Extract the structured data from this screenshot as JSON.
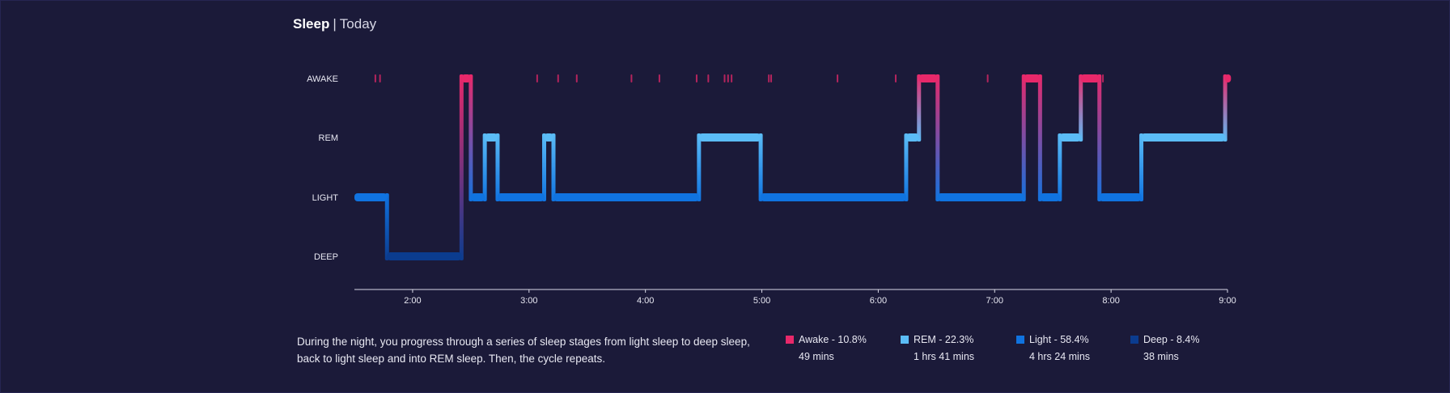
{
  "header": {
    "title": "Sleep",
    "separator": "|",
    "subtitle": "Today"
  },
  "colors": {
    "background": "#1b1a39",
    "awake": "#e8286a",
    "rem": "#5bbcf6",
    "light": "#1073e0",
    "deep": "#0b3c8f"
  },
  "description": "During the night, you progress through a series of sleep stages from light sleep to deep sleep, back to light sleep and into REM sleep. Then, the cycle repeats.",
  "legend": [
    {
      "label": "Awake - 10.8%",
      "duration": "49 mins",
      "color": "#e8286a"
    },
    {
      "label": "REM - 22.3%",
      "duration": "1 hrs 41 mins",
      "color": "#5bbcf6"
    },
    {
      "label": "Light - 58.4%",
      "duration": "4 hrs 24 mins",
      "color": "#1073e0"
    },
    {
      "label": "Deep - 8.4%",
      "duration": "38 mins",
      "color": "#0b3c8f"
    }
  ],
  "chart_data": {
    "type": "hypnogram",
    "stages": [
      "AWAKE",
      "REM",
      "LIGHT",
      "DEEP"
    ],
    "x_unit": "hours (clock time)",
    "xlim": [
      1.5,
      9.0
    ],
    "x_ticks": [
      {
        "value": 2,
        "label": "2:00"
      },
      {
        "value": 3,
        "label": "3:00"
      },
      {
        "value": 4,
        "label": "4:00"
      },
      {
        "value": 5,
        "label": "5:00"
      },
      {
        "value": 6,
        "label": "6:00"
      },
      {
        "value": 7,
        "label": "7:00"
      },
      {
        "value": 8,
        "label": "8:00"
      },
      {
        "value": 9,
        "label": "9:00"
      }
    ],
    "segments": [
      {
        "stage": "LIGHT",
        "start": 1.5,
        "end": 1.78
      },
      {
        "stage": "DEEP",
        "start": 1.78,
        "end": 2.42
      },
      {
        "stage": "AWAKE",
        "start": 2.42,
        "end": 2.5
      },
      {
        "stage": "LIGHT",
        "start": 2.5,
        "end": 2.62
      },
      {
        "stage": "REM",
        "start": 2.62,
        "end": 2.73
      },
      {
        "stage": "LIGHT",
        "start": 2.73,
        "end": 3.13
      },
      {
        "stage": "REM",
        "start": 3.13,
        "end": 3.21
      },
      {
        "stage": "LIGHT",
        "start": 3.21,
        "end": 4.46
      },
      {
        "stage": "REM",
        "start": 4.46,
        "end": 4.99
      },
      {
        "stage": "LIGHT",
        "start": 4.99,
        "end": 6.24
      },
      {
        "stage": "REM",
        "start": 6.24,
        "end": 6.35
      },
      {
        "stage": "AWAKE",
        "start": 6.35,
        "end": 6.51
      },
      {
        "stage": "LIGHT",
        "start": 6.51,
        "end": 7.25
      },
      {
        "stage": "AWAKE",
        "start": 7.25,
        "end": 7.39
      },
      {
        "stage": "LIGHT",
        "start": 7.39,
        "end": 7.56
      },
      {
        "stage": "REM",
        "start": 7.56,
        "end": 7.74
      },
      {
        "stage": "AWAKE",
        "start": 7.74,
        "end": 7.9
      },
      {
        "stage": "LIGHT",
        "start": 7.9,
        "end": 8.26
      },
      {
        "stage": "REM",
        "start": 8.26,
        "end": 8.98
      },
      {
        "stage": "AWAKE",
        "start": 8.98,
        "end": 9.03
      }
    ],
    "brief_awakenings": [
      1.68,
      1.72,
      3.07,
      3.25,
      3.41,
      3.88,
      4.12,
      4.44,
      4.54,
      4.68,
      4.71,
      4.74,
      5.06,
      5.08,
      5.65,
      6.15,
      6.94,
      7.93
    ]
  }
}
